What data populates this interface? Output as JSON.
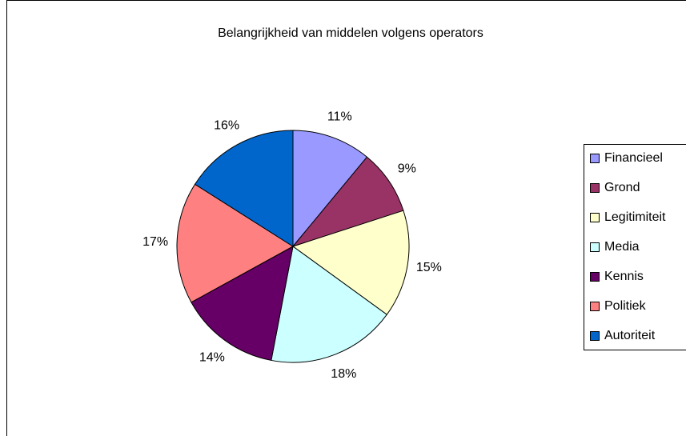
{
  "chart_data": {
    "type": "pie",
    "title": "Belangrijkheid van middelen volgens operators",
    "categories": [
      "Financieel",
      "Grond",
      "Legitimiteit",
      "Media",
      "Kennis",
      "Politiek",
      "Autoriteit"
    ],
    "values": [
      11,
      9,
      15,
      18,
      14,
      17,
      16
    ],
    "value_labels": [
      "11%",
      "9%",
      "15%",
      "18%",
      "14%",
      "17%",
      "16%"
    ],
    "colors": [
      "#9999ff",
      "#993366",
      "#ffffcc",
      "#ccffff",
      "#660066",
      "#ff8080",
      "#0066cc"
    ],
    "legend": "right"
  }
}
